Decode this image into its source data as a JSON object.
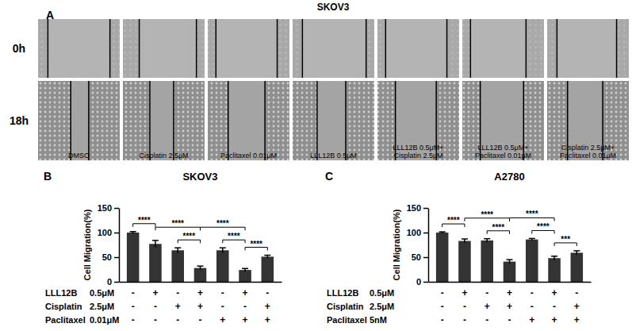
{
  "panel_a": {
    "label": "A",
    "title": "SKOV3",
    "rows": [
      "0h",
      "18h"
    ],
    "columns": [
      [
        "DMSO"
      ],
      [
        "Cisplatin 2.5μM"
      ],
      [
        "Paclitaxel 0.01μM"
      ],
      [
        "LLL12B 0.5μM"
      ],
      [
        "LLL12B 0.5μM+",
        "Cisplatin 2.5μM"
      ],
      [
        "LLL12B 0.5μM+",
        "Paclitaxel 0.01μM"
      ],
      [
        "Cisplatin 2.5μM+",
        "Paclitaxel 0.01μM"
      ]
    ]
  },
  "chart_data": [
    {
      "type": "bar",
      "panel_label": "B",
      "title": "SKOV3",
      "ylabel": "Cell Migration(%)",
      "categories": [
        null,
        null,
        null,
        null,
        null,
        null,
        null
      ],
      "values": [
        100,
        77,
        64,
        28,
        64,
        24,
        51
      ],
      "error": [
        2,
        7,
        5,
        4,
        5,
        3,
        3
      ],
      "color": "#333333",
      "ylim": [
        0,
        150
      ],
      "yticks": [
        0,
        50,
        100,
        150
      ],
      "treatments": [
        {
          "name": "LLL12B",
          "dose": "0.5μM",
          "signs": [
            "-",
            "+",
            "-",
            "+",
            "-",
            "+",
            "-"
          ]
        },
        {
          "name": "Cisplatin",
          "dose": "2.5μM",
          "signs": [
            "-",
            "-",
            "+",
            "+",
            "-",
            "-",
            "+"
          ]
        },
        {
          "name": "Paclitaxel",
          "dose": "0.01μM",
          "signs": [
            "-",
            "-",
            "-",
            "-",
            "+",
            "+",
            "+"
          ]
        }
      ],
      "significance": [
        {
          "from": 0,
          "to": 1,
          "label": "****"
        },
        {
          "from": 1,
          "to": 3,
          "label": "****"
        },
        {
          "from": 3,
          "to": 5,
          "label": "****"
        },
        {
          "from": 2,
          "to": 3,
          "label": "****"
        },
        {
          "from": 4,
          "to": 5,
          "label": "****"
        },
        {
          "from": 5,
          "to": 6,
          "label": "****"
        }
      ]
    },
    {
      "type": "bar",
      "panel_label": "C",
      "title": "A2780",
      "ylabel": "Cell Migration(%)",
      "categories": [
        null,
        null,
        null,
        null,
        null,
        null,
        null
      ],
      "values": [
        100,
        83,
        84,
        41,
        86,
        48,
        59
      ],
      "error": [
        1.5,
        4,
        3.5,
        4,
        2,
        4,
        4
      ],
      "color": "#333333",
      "ylim": [
        0,
        150
      ],
      "yticks": [
        0,
        50,
        100,
        150
      ],
      "treatments": [
        {
          "name": "LLL12B",
          "dose": "0.5μM",
          "signs": [
            "-",
            "+",
            "-",
            "+",
            "-",
            "+",
            "-"
          ]
        },
        {
          "name": "Cisplatin",
          "dose": "2.5μM",
          "signs": [
            "-",
            "-",
            "+",
            "+",
            "-",
            "-",
            "+"
          ]
        },
        {
          "name": "Paclitaxel",
          "dose": "5nM",
          "signs": [
            "-",
            "-",
            "-",
            "-",
            "+",
            "+",
            "+"
          ]
        }
      ],
      "significance": [
        {
          "from": 0,
          "to": 1,
          "label": "****"
        },
        {
          "from": 1,
          "to": 3,
          "label": "****"
        },
        {
          "from": 3,
          "to": 5,
          "label": "****"
        },
        {
          "from": 2,
          "to": 3,
          "label": "****"
        },
        {
          "from": 4,
          "to": 5,
          "label": "****"
        },
        {
          "from": 5,
          "to": 6,
          "label": "***"
        }
      ]
    }
  ]
}
